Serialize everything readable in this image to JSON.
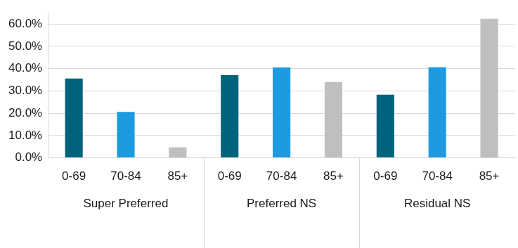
{
  "chart_data": {
    "type": "bar",
    "categories": [
      "Super Preferred",
      "Preferred NS",
      "Residual NS"
    ],
    "series": [
      {
        "name": "0-69",
        "color": "#00637C",
        "values": [
          35.5,
          37.0,
          28.3
        ]
      },
      {
        "name": "70-84",
        "color": "#1E9AE0",
        "values": [
          20.6,
          40.5,
          40.6
        ]
      },
      {
        "name": "85+",
        "color": "#BFBFBF",
        "values": [
          4.7,
          34.0,
          62.3
        ]
      }
    ],
    "ylim": [
      0,
      65
    ],
    "yticks": [
      {
        "value": 0,
        "label": "0.0%"
      },
      {
        "value": 10,
        "label": "10.0%"
      },
      {
        "value": 20,
        "label": "20.0%"
      },
      {
        "value": 30,
        "label": "30.0%"
      },
      {
        "value": 40,
        "label": "40.0%"
      },
      {
        "value": 50,
        "label": "50.0%"
      },
      {
        "value": 60,
        "label": "60.0%"
      }
    ],
    "grid": true
  }
}
